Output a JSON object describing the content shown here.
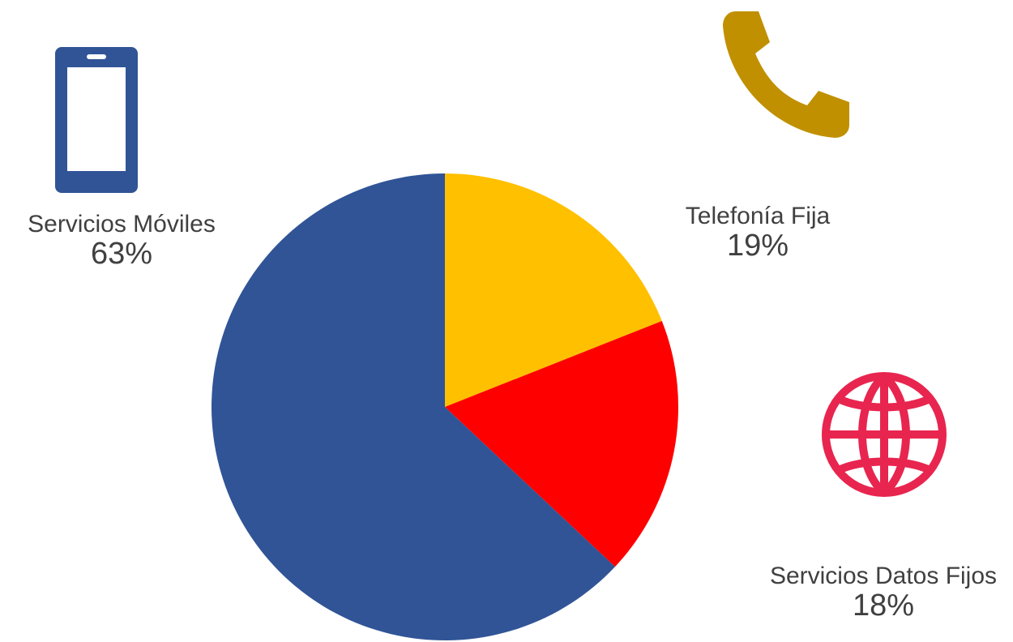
{
  "chart_data": {
    "type": "pie",
    "title": "",
    "slices": [
      {
        "name": "Telefonía Fija",
        "value": 19,
        "label": "19%",
        "color": "#FFC000",
        "icon": "phone-icon",
        "icon_color": "#C09000"
      },
      {
        "name": "Servicios Datos Fijos",
        "value": 18,
        "label": "18%",
        "color": "#FF0000",
        "icon": "globe-icon",
        "icon_color": "#E8254F"
      },
      {
        "name": "Servicios Móviles",
        "value": 63,
        "label": "63%",
        "color": "#305496",
        "icon": "mobile-phone-icon",
        "icon_color": "#305496"
      }
    ]
  }
}
